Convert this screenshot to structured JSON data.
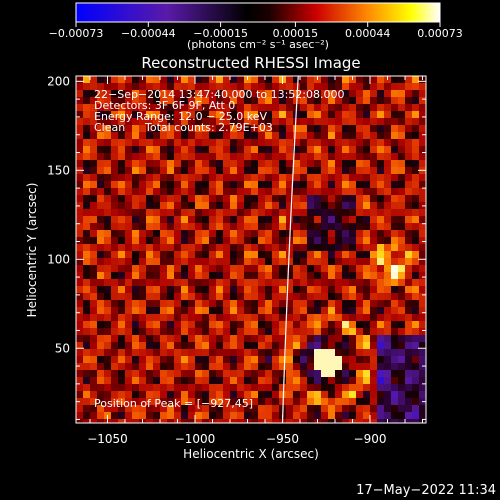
{
  "chart_data": {
    "type": "heatmap",
    "title": "Reconstructed RHESSI Image",
    "xlabel": "Heliocentric X (arcsec)",
    "ylabel": "Heliocentric Y (arcsec)",
    "xlim": [
      -1068,
      -868
    ],
    "ylim": [
      8,
      203
    ],
    "xticks": [
      -1050,
      -1000,
      -950,
      -900
    ],
    "xtick_labels": [
      "−1050",
      "−1000",
      "−950",
      "−900"
    ],
    "yticks": [
      50,
      100,
      150,
      200
    ],
    "ytick_labels": [
      "50",
      "100",
      "150",
      "200"
    ],
    "colorbar": {
      "min": -0.00073,
      "max": 0.00073,
      "tick_labels": [
        "−0.00073",
        "−0.00044",
        "−0.00015",
        "0.00015",
        "0.00044",
        "0.00073"
      ],
      "unit_label": "(photons cm⁻² s⁻¹ asec⁻²)",
      "colormap": "blue-purple-black-red-orange-yellow-white"
    },
    "limb_curve": [
      [
        -950,
        8
      ],
      [
        -947,
        100
      ],
      [
        -941,
        203
      ]
    ],
    "peak": [
      -927,
      45
    ],
    "annotations": {
      "time_range": "22−Sep−2014 13:47:40.000 to 13:52:08.000",
      "detectors": "Detectors: 3F 6F 9F, Att 0",
      "energy_range": "Energy Range: 12.0 − 25.0 keV",
      "method": "Clean",
      "total_counts": "Total counts: 2.79E+03",
      "peak_position": "Position of Peak = [−927,45]"
    },
    "grid": false
  },
  "footer": {
    "timestamp": "17−May−2022 11:34"
  },
  "colors": {
    "background": "#000000",
    "text": "#ffffff",
    "limb_line": "#ffffff"
  }
}
